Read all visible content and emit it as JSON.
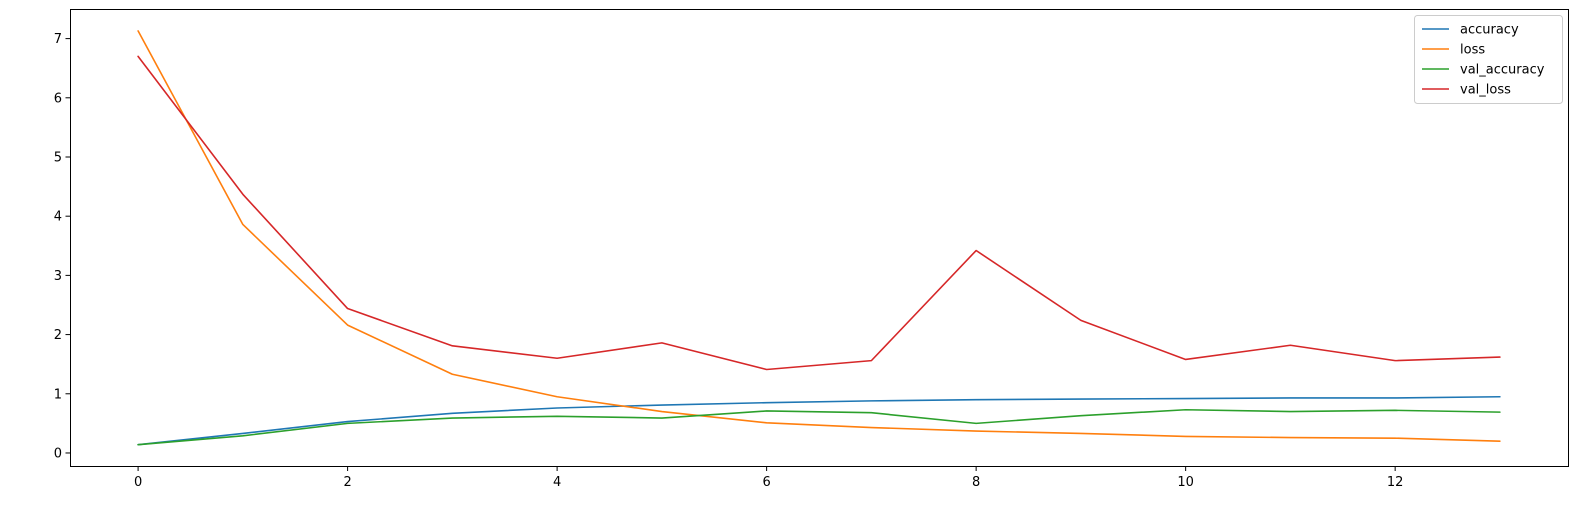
{
  "chart_data": {
    "type": "line",
    "title": "",
    "xlabel": "",
    "ylabel": "",
    "xlim": [
      -0.65,
      13.65
    ],
    "ylim": [
      -0.22,
      7.5
    ],
    "x_ticks": [
      0,
      2,
      4,
      6,
      8,
      10,
      12
    ],
    "y_ticks": [
      0,
      1,
      2,
      3,
      4,
      5,
      6,
      7
    ],
    "x_tick_labels": [
      "0",
      "2",
      "4",
      "6",
      "8",
      "10",
      "12"
    ],
    "y_tick_labels": [
      "0",
      "1",
      "2",
      "3",
      "4",
      "5",
      "6",
      "7"
    ],
    "grid": false,
    "legend": {
      "placement": "top-right"
    },
    "x": [
      0,
      1,
      2,
      3,
      4,
      5,
      6,
      7,
      8,
      9,
      10,
      11,
      12,
      13
    ],
    "series": [
      {
        "name": "accuracy",
        "color": "#1f77b4",
        "values": [
          0.14,
          0.33,
          0.53,
          0.67,
          0.76,
          0.81,
          0.85,
          0.88,
          0.9,
          0.91,
          0.92,
          0.93,
          0.93,
          0.95
        ]
      },
      {
        "name": "loss",
        "color": "#ff7f0e",
        "values": [
          7.13,
          3.86,
          2.16,
          1.33,
          0.95,
          0.7,
          0.51,
          0.43,
          0.37,
          0.33,
          0.28,
          0.26,
          0.25,
          0.2
        ]
      },
      {
        "name": "val_accuracy",
        "color": "#2ca02c",
        "values": [
          0.14,
          0.29,
          0.5,
          0.59,
          0.62,
          0.59,
          0.71,
          0.68,
          0.5,
          0.63,
          0.73,
          0.7,
          0.72,
          0.69
        ]
      },
      {
        "name": "val_loss",
        "color": "#d62728",
        "values": [
          6.7,
          4.37,
          2.44,
          1.81,
          1.6,
          1.86,
          1.41,
          1.56,
          3.42,
          2.24,
          1.58,
          1.82,
          1.56,
          1.62
        ]
      }
    ]
  }
}
